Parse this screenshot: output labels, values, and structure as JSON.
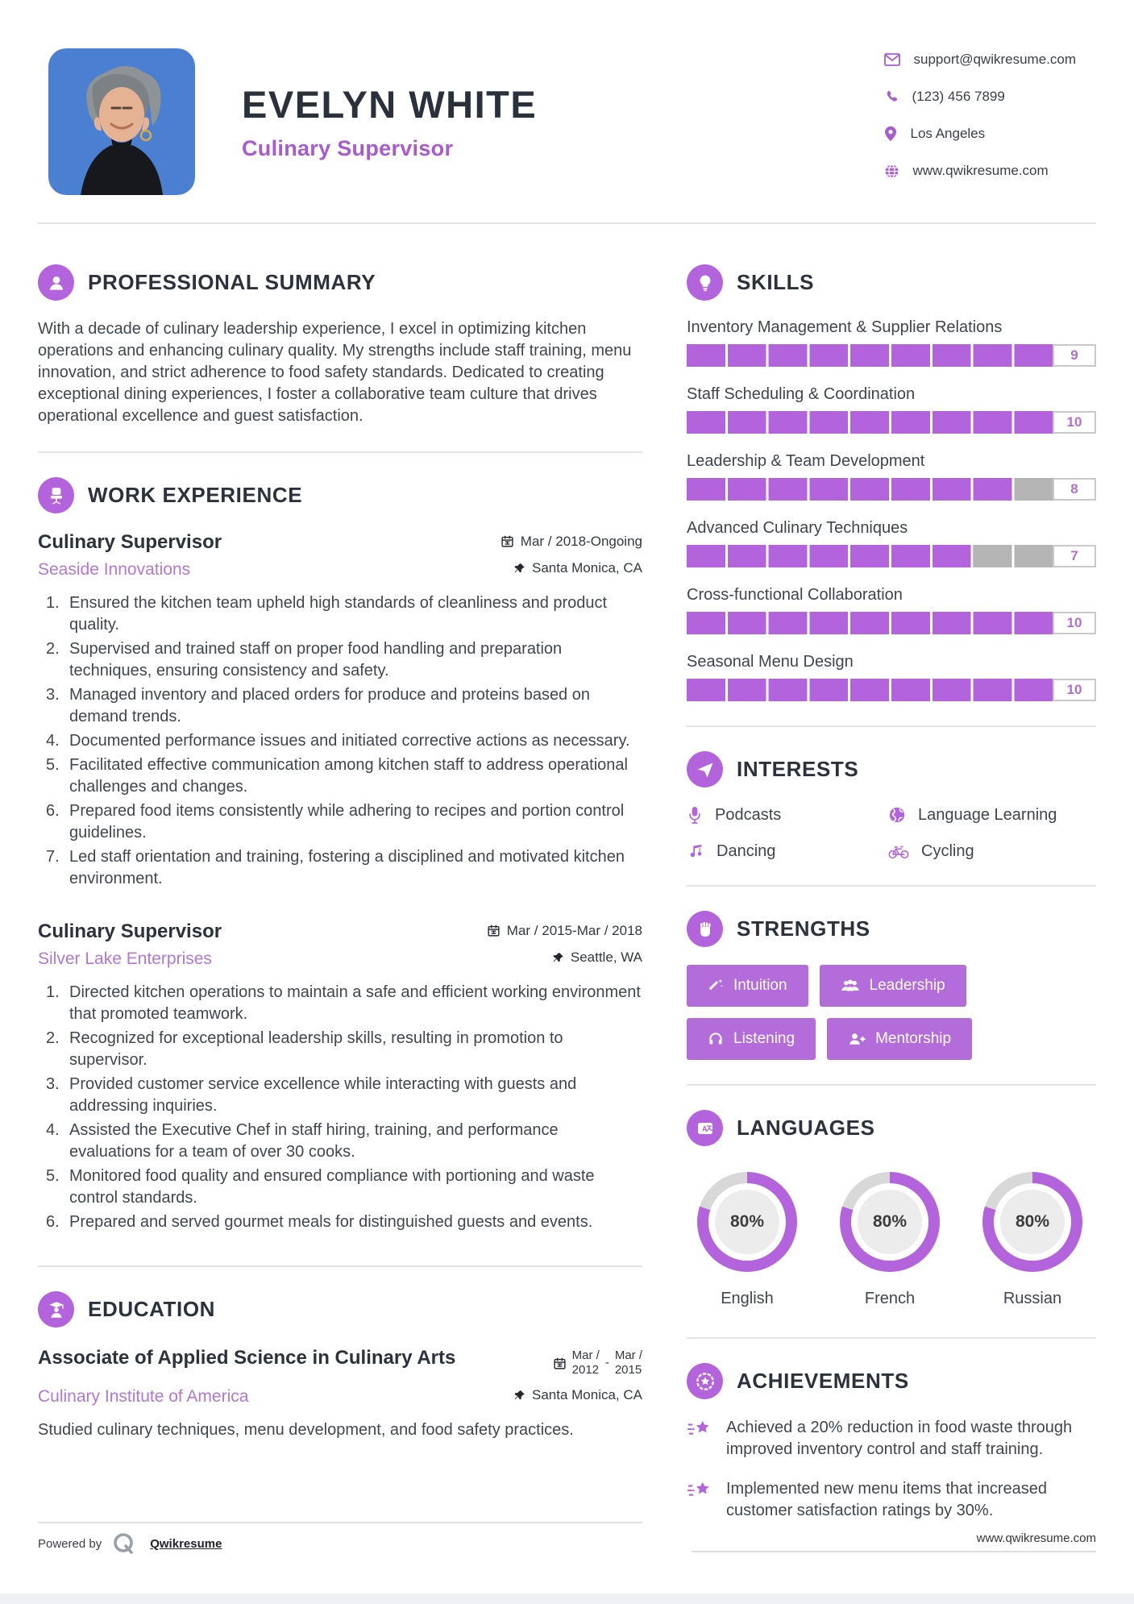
{
  "colors": {
    "accent": "#b363dc",
    "accent_text": "#a85ad2",
    "company_text": "#b277d8",
    "photo_bg": "#4a7fd2",
    "heading": "#2b323c",
    "body": "#40464f",
    "bar_gray": "#b5b5b5",
    "ring_gray": "#d8d8d8",
    "divider": "#e3e3e3"
  },
  "header": {
    "name": "EVELYN WHITE",
    "title": "Culinary Supervisor",
    "photo": "portrait-woman-gray-hair-blue-background",
    "contact": [
      {
        "icon": "mail-icon",
        "text": "support@qwikresume.com"
      },
      {
        "icon": "phone-icon",
        "text": "(123) 456 7899"
      },
      {
        "icon": "pin-icon",
        "text": "Los Angeles"
      },
      {
        "icon": "globe-icon",
        "text": "www.qwikresume.com"
      }
    ]
  },
  "summary": {
    "heading": "PROFESSIONAL SUMMARY",
    "icon": "user-icon",
    "text": "With a decade of culinary leadership experience, I excel in optimizing kitchen operations and enhancing culinary quality. My strengths include staff training, menu innovation, and strict adherence to food safety standards. Dedicated to creating exceptional dining experiences, I foster a collaborative team culture that drives operational excellence and guest satisfaction."
  },
  "work": {
    "heading": "WORK EXPERIENCE",
    "icon": "office-chair-icon",
    "jobs": [
      {
        "title": "Culinary Supervisor",
        "company": "Seaside Innovations",
        "date": "Mar / 2018-Ongoing",
        "location": "Santa Monica, CA",
        "bullets": [
          "Ensured the kitchen team upheld high standards of cleanliness and product quality.",
          "Supervised and trained staff on proper food handling and preparation techniques, ensuring consistency and safety.",
          "Managed inventory and placed orders for produce and proteins based on demand trends.",
          "Documented performance issues and initiated corrective actions as necessary.",
          "Facilitated effective communication among kitchen staff to address operational challenges and changes.",
          "Prepared food items consistently while adhering to recipes and portion control guidelines.",
          "Led staff orientation and training, fostering a disciplined and motivated kitchen environment."
        ]
      },
      {
        "title": "Culinary Supervisor",
        "company": "Silver Lake Enterprises",
        "date": "Mar / 2015-Mar / 2018",
        "location": "Seattle, WA",
        "bullets": [
          "Directed kitchen operations to maintain a safe and efficient working environment that promoted teamwork.",
          "Recognized for exceptional leadership skills, resulting in promotion to supervisor.",
          "Provided customer service excellence while interacting with guests and addressing inquiries.",
          "Assisted the Executive Chef in staff hiring, training, and performance evaluations for a team of over 30 cooks.",
          "Monitored food quality and ensured compliance with portioning and waste control standards.",
          "Prepared and served gourmet meals for distinguished guests and events."
        ]
      }
    ]
  },
  "education": {
    "heading": "EDUCATION",
    "icon": "graduate-icon",
    "degree": "Associate of Applied Science in Culinary Arts",
    "school": "Culinary Institute of America",
    "date_start_line1": "Mar /",
    "date_start_line2": "2012",
    "date_separator": "-",
    "date_end_line1": "Mar /",
    "date_end_line2": "2015",
    "location": "Santa Monica, CA",
    "description": "Studied culinary techniques, menu development, and food safety practices."
  },
  "skills": {
    "heading": "SKILLS",
    "icon": "bulb-icon",
    "max": 10,
    "items": [
      {
        "label": "Inventory Management & Supplier Relations",
        "value": 9
      },
      {
        "label": "Staff Scheduling & Coordination",
        "value": 10
      },
      {
        "label": "Leadership & Team Development",
        "value": 8
      },
      {
        "label": "Advanced Culinary Techniques",
        "value": 7
      },
      {
        "label": "Cross-functional Collaboration",
        "value": 10
      },
      {
        "label": "Seasonal Menu Design",
        "value": 10
      }
    ]
  },
  "interests": {
    "heading": "INTERESTS",
    "icon": "paper-plane-icon",
    "items": [
      {
        "icon": "microphone-icon",
        "label": "Podcasts"
      },
      {
        "icon": "globe-icon",
        "label": "Language Learning"
      },
      {
        "icon": "music-note-icon",
        "label": "Dancing"
      },
      {
        "icon": "bicycle-icon",
        "label": "Cycling"
      }
    ]
  },
  "strengths": {
    "heading": "STRENGTHS",
    "icon": "fist-icon",
    "items": [
      {
        "icon": "magic-wand-icon",
        "label": "Intuition"
      },
      {
        "icon": "users-icon",
        "label": "Leadership"
      },
      {
        "icon": "headphones-icon",
        "label": "Listening"
      },
      {
        "icon": "user-plus-icon",
        "label": "Mentorship"
      }
    ]
  },
  "languages": {
    "heading": "LANGUAGES",
    "icon": "translate-icon",
    "items": [
      {
        "label": "English",
        "percent": "80%"
      },
      {
        "label": "French",
        "percent": "80%"
      },
      {
        "label": "Russian",
        "percent": "80%"
      }
    ]
  },
  "achievements": {
    "heading": "ACHIEVEMENTS",
    "icon": "medal-star-icon",
    "items": [
      {
        "icon": "shooting-star-icon",
        "text": "Achieved a 20% reduction in food waste through improved inventory control and staff training."
      },
      {
        "icon": "shooting-star-icon",
        "text": "Implemented new menu items that increased customer satisfaction ratings by 30%."
      }
    ]
  },
  "footer": {
    "powered_by": "Powered by",
    "brand": "Qwikresume",
    "brand_icon": "qwikresume-q-logo",
    "website": "www.qwikresume.com"
  }
}
